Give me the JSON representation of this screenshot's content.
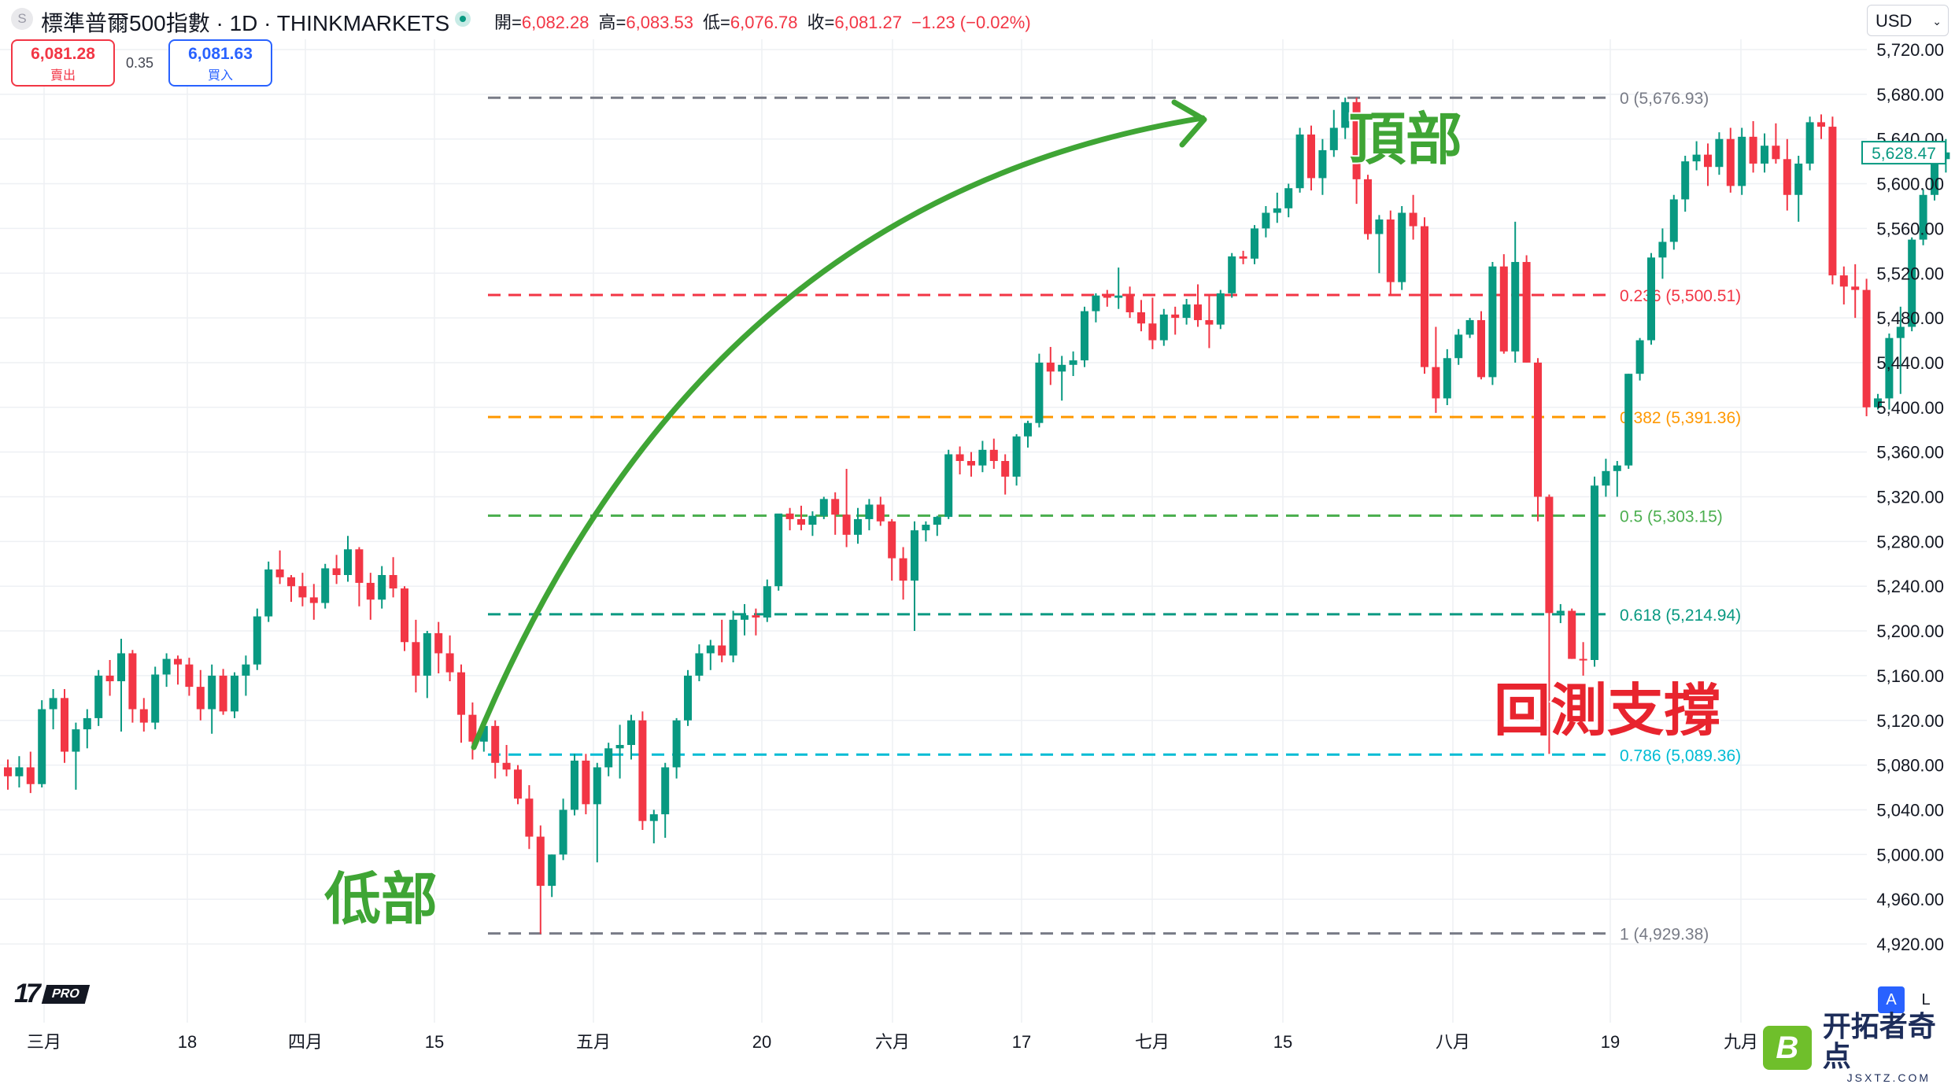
{
  "header": {
    "symbol_icon": "S",
    "title": "標準普爾500指數 · 1D · THINKMARKETS",
    "open_label": "開=",
    "open": "6,082.28",
    "high_label": "高=",
    "high": "6,083.53",
    "low_label": "低=",
    "low": "6,076.78",
    "close_label": "收=",
    "close": "6,081.27",
    "change": "−1.23 (−0.02%)",
    "sell_price": "6,081.28",
    "sell_label": "賣出",
    "spread": "0.35",
    "buy_price": "6,081.63",
    "buy_label": "買入",
    "currency": "USD"
  },
  "footer": {
    "logo": "17",
    "pro": "PRO",
    "btn_a": "A",
    "btn_l": "L",
    "watermark_icon": "B",
    "watermark": "开拓者奇点",
    "watermark_url": "JSXTZ.COM"
  },
  "chart_data": {
    "type": "candlestick",
    "ylim": [
      4890,
      5740
    ],
    "y_ticks": [
      4920,
      4960,
      5000,
      5040,
      5080,
      5120,
      5160,
      5200,
      5240,
      5280,
      5320,
      5360,
      5400,
      5440,
      5480,
      5520,
      5560,
      5600,
      5640,
      5680,
      5720
    ],
    "x_ticks": [
      "三月",
      "18",
      "四月",
      "15",
      "五月",
      "20",
      "六月",
      "17",
      "七月",
      "15",
      "八月",
      "19",
      "九月"
    ],
    "last_price": 5628.47,
    "colors": {
      "up": "#089981",
      "down": "#f23645",
      "grid": "#eef0f4",
      "annotation": "#3fa535",
      "retest": "#e8242e"
    },
    "fib": [
      {
        "label": "0 (5,676.93)",
        "value": 5676.93,
        "color": "#787b86"
      },
      {
        "label": "0.236 (5,500.51)",
        "value": 5500.51,
        "color": "#f23645"
      },
      {
        "label": "0.382 (5,391.36)",
        "value": 5391.36,
        "color": "#ff9800"
      },
      {
        "label": "0.5 (5,303.15)",
        "value": 5303.15,
        "color": "#4caf50"
      },
      {
        "label": "0.618 (5,214.94)",
        "value": 5214.94,
        "color": "#089981"
      },
      {
        "label": "0.786 (5,089.36)",
        "value": 5089.36,
        "color": "#00bcd4"
      },
      {
        "label": "1 (4,929.38)",
        "value": 4929.38,
        "color": "#787b86"
      }
    ],
    "annotations": {
      "low": "低部",
      "top": "頂部",
      "retest": "回測支撐"
    },
    "candles": [
      [
        5078,
        5085,
        5058,
        5070
      ],
      [
        5070,
        5088,
        5060,
        5078
      ],
      [
        5078,
        5092,
        5055,
        5063
      ],
      [
        5063,
        5138,
        5060,
        5130
      ],
      [
        5130,
        5148,
        5112,
        5140
      ],
      [
        5140,
        5148,
        5082,
        5092
      ],
      [
        5092,
        5118,
        5058,
        5112
      ],
      [
        5112,
        5130,
        5095,
        5122
      ],
      [
        5122,
        5165,
        5115,
        5160
      ],
      [
        5160,
        5174,
        5142,
        5155
      ],
      [
        5155,
        5193,
        5110,
        5180
      ],
      [
        5180,
        5183,
        5118,
        5130
      ],
      [
        5130,
        5140,
        5110,
        5118
      ],
      [
        5118,
        5168,
        5112,
        5161
      ],
      [
        5161,
        5180,
        5150,
        5175
      ],
      [
        5175,
        5178,
        5152,
        5170
      ],
      [
        5170,
        5176,
        5142,
        5150
      ],
      [
        5150,
        5165,
        5120,
        5130
      ],
      [
        5130,
        5170,
        5108,
        5160
      ],
      [
        5160,
        5166,
        5125,
        5128
      ],
      [
        5128,
        5163,
        5122,
        5160
      ],
      [
        5160,
        5178,
        5142,
        5170
      ],
      [
        5170,
        5220,
        5165,
        5213
      ],
      [
        5213,
        5262,
        5208,
        5255
      ],
      [
        5255,
        5272,
        5242,
        5248
      ],
      [
        5248,
        5250,
        5226,
        5240
      ],
      [
        5240,
        5252,
        5222,
        5230
      ],
      [
        5230,
        5242,
        5210,
        5225
      ],
      [
        5225,
        5260,
        5220,
        5256
      ],
      [
        5256,
        5268,
        5242,
        5250
      ],
      [
        5250,
        5285,
        5244,
        5273
      ],
      [
        5273,
        5275,
        5222,
        5243
      ],
      [
        5243,
        5252,
        5210,
        5228
      ],
      [
        5228,
        5258,
        5220,
        5250
      ],
      [
        5250,
        5266,
        5230,
        5238
      ],
      [
        5238,
        5240,
        5182,
        5190
      ],
      [
        5190,
        5210,
        5145,
        5160
      ],
      [
        5160,
        5200,
        5140,
        5198
      ],
      [
        5198,
        5208,
        5162,
        5180
      ],
      [
        5180,
        5196,
        5155,
        5163
      ],
      [
        5163,
        5170,
        5100,
        5125
      ],
      [
        5125,
        5136,
        5085,
        5101
      ],
      [
        5101,
        5122,
        5092,
        5115
      ],
      [
        5115,
        5120,
        5068,
        5082
      ],
      [
        5082,
        5098,
        5070,
        5076
      ],
      [
        5076,
        5080,
        5045,
        5050
      ],
      [
        5050,
        5062,
        5005,
        5016
      ],
      [
        5016,
        5026,
        4929,
        4972
      ],
      [
        4972,
        5000,
        4962,
        5000
      ],
      [
        5000,
        5050,
        4995,
        5040
      ],
      [
        5040,
        5090,
        5035,
        5084
      ],
      [
        5084,
        5090,
        5036,
        5045
      ],
      [
        5045,
        5082,
        4993,
        5078
      ],
      [
        5078,
        5100,
        5070,
        5095
      ],
      [
        5095,
        5116,
        5068,
        5098
      ],
      [
        5098,
        5125,
        5085,
        5120
      ],
      [
        5120,
        5128,
        5022,
        5030
      ],
      [
        5030,
        5040,
        5010,
        5036
      ],
      [
        5036,
        5082,
        5015,
        5078
      ],
      [
        5078,
        5122,
        5068,
        5120
      ],
      [
        5120,
        5165,
        5115,
        5160
      ],
      [
        5160,
        5188,
        5155,
        5180
      ],
      [
        5180,
        5192,
        5165,
        5187
      ],
      [
        5187,
        5210,
        5172,
        5178
      ],
      [
        5178,
        5218,
        5172,
        5210
      ],
      [
        5210,
        5224,
        5196,
        5214
      ],
      [
        5214,
        5220,
        5196,
        5212
      ],
      [
        5212,
        5246,
        5208,
        5240
      ],
      [
        5240,
        5304,
        5236,
        5305
      ],
      [
        5305,
        5310,
        5290,
        5300
      ],
      [
        5300,
        5312,
        5290,
        5295
      ],
      [
        5295,
        5307,
        5285,
        5303
      ],
      [
        5303,
        5320,
        5300,
        5318
      ],
      [
        5318,
        5324,
        5286,
        5304
      ],
      [
        5304,
        5345,
        5275,
        5286
      ],
      [
        5286,
        5310,
        5278,
        5300
      ],
      [
        5300,
        5318,
        5290,
        5313
      ],
      [
        5313,
        5320,
        5294,
        5298
      ],
      [
        5298,
        5300,
        5245,
        5265
      ],
      [
        5265,
        5275,
        5228,
        5245
      ],
      [
        5245,
        5298,
        5200,
        5290
      ],
      [
        5290,
        5298,
        5280,
        5295
      ],
      [
        5295,
        5303,
        5285,
        5302
      ],
      [
        5302,
        5362,
        5300,
        5358
      ],
      [
        5358,
        5365,
        5340,
        5352
      ],
      [
        5352,
        5360,
        5338,
        5348
      ],
      [
        5348,
        5370,
        5342,
        5362
      ],
      [
        5362,
        5372,
        5345,
        5352
      ],
      [
        5352,
        5358,
        5322,
        5338
      ],
      [
        5338,
        5376,
        5330,
        5374
      ],
      [
        5374,
        5388,
        5364,
        5386
      ],
      [
        5386,
        5448,
        5382,
        5440
      ],
      [
        5440,
        5454,
        5420,
        5432
      ],
      [
        5432,
        5446,
        5406,
        5438
      ],
      [
        5438,
        5450,
        5428,
        5442
      ],
      [
        5442,
        5490,
        5436,
        5486
      ],
      [
        5486,
        5502,
        5476,
        5500
      ],
      [
        5500,
        5505,
        5490,
        5498
      ],
      [
        5498,
        5525,
        5488,
        5500
      ],
      [
        5500,
        5508,
        5480,
        5485
      ],
      [
        5485,
        5496,
        5468,
        5475
      ],
      [
        5475,
        5498,
        5452,
        5460
      ],
      [
        5460,
        5488,
        5455,
        5483
      ],
      [
        5483,
        5490,
        5465,
        5480
      ],
      [
        5480,
        5497,
        5474,
        5492
      ],
      [
        5492,
        5510,
        5472,
        5478
      ],
      [
        5478,
        5500,
        5453,
        5474
      ],
      [
        5474,
        5505,
        5470,
        5502
      ],
      [
        5502,
        5538,
        5498,
        5535
      ],
      [
        5535,
        5540,
        5528,
        5533
      ],
      [
        5533,
        5563,
        5528,
        5560
      ],
      [
        5560,
        5580,
        5552,
        5574
      ],
      [
        5574,
        5592,
        5565,
        5578
      ],
      [
        5578,
        5600,
        5570,
        5596
      ],
      [
        5596,
        5650,
        5592,
        5644
      ],
      [
        5644,
        5652,
        5594,
        5605
      ],
      [
        5605,
        5640,
        5590,
        5630
      ],
      [
        5630,
        5666,
        5624,
        5650
      ],
      [
        5650,
        5677,
        5640,
        5673
      ],
      [
        5673,
        5677,
        5582,
        5604
      ],
      [
        5604,
        5608,
        5550,
        5555
      ],
      [
        5555,
        5572,
        5520,
        5568
      ],
      [
        5568,
        5576,
        5500,
        5512
      ],
      [
        5512,
        5580,
        5505,
        5574
      ],
      [
        5574,
        5590,
        5550,
        5562
      ],
      [
        5562,
        5570,
        5430,
        5436
      ],
      [
        5436,
        5472,
        5395,
        5408
      ],
      [
        5408,
        5452,
        5402,
        5444
      ],
      [
        5444,
        5470,
        5438,
        5465
      ],
      [
        5465,
        5480,
        5462,
        5478
      ],
      [
        5478,
        5486,
        5425,
        5427
      ],
      [
        5427,
        5530,
        5420,
        5526
      ],
      [
        5526,
        5537,
        5448,
        5450
      ],
      [
        5450,
        5566,
        5440,
        5530
      ],
      [
        5530,
        5536,
        5440,
        5440
      ],
      [
        5440,
        5444,
        5298,
        5320
      ],
      [
        5320,
        5322,
        5090,
        5216
      ],
      [
        5216,
        5224,
        5207,
        5218
      ],
      [
        5218,
        5220,
        5175,
        5175
      ],
      [
        5175,
        5190,
        5160,
        5174
      ],
      [
        5174,
        5338,
        5168,
        5330
      ],
      [
        5330,
        5354,
        5320,
        5343
      ],
      [
        5343,
        5352,
        5320,
        5348
      ],
      [
        5348,
        5430,
        5345,
        5430
      ],
      [
        5430,
        5462,
        5424,
        5460
      ],
      [
        5460,
        5538,
        5456,
        5534
      ],
      [
        5534,
        5560,
        5515,
        5548
      ],
      [
        5548,
        5590,
        5541,
        5586
      ],
      [
        5586,
        5625,
        5575,
        5620
      ],
      [
        5620,
        5638,
        5612,
        5626
      ],
      [
        5626,
        5636,
        5598,
        5615
      ],
      [
        5615,
        5646,
        5608,
        5640
      ],
      [
        5640,
        5650,
        5592,
        5598
      ],
      [
        5598,
        5650,
        5590,
        5642
      ],
      [
        5642,
        5656,
        5610,
        5618
      ],
      [
        5618,
        5645,
        5610,
        5634
      ],
      [
        5634,
        5654,
        5618,
        5622
      ],
      [
        5622,
        5640,
        5576,
        5590
      ],
      [
        5590,
        5625,
        5566,
        5618
      ],
      [
        5618,
        5660,
        5612,
        5655
      ],
      [
        5655,
        5662,
        5640,
        5651
      ],
      [
        5651,
        5660,
        5510,
        5518
      ],
      [
        5518,
        5526,
        5492,
        5508
      ],
      [
        5508,
        5528,
        5480,
        5505
      ],
      [
        5505,
        5515,
        5392,
        5400
      ],
      [
        5400,
        5412,
        5398,
        5408
      ],
      [
        5408,
        5466,
        5398,
        5462
      ],
      [
        5462,
        5490,
        5412,
        5472
      ],
      [
        5472,
        5552,
        5468,
        5550
      ],
      [
        5550,
        5595,
        5545,
        5590
      ],
      [
        5590,
        5625,
        5585,
        5622
      ],
      [
        5622,
        5640,
        5610,
        5628
      ]
    ]
  }
}
